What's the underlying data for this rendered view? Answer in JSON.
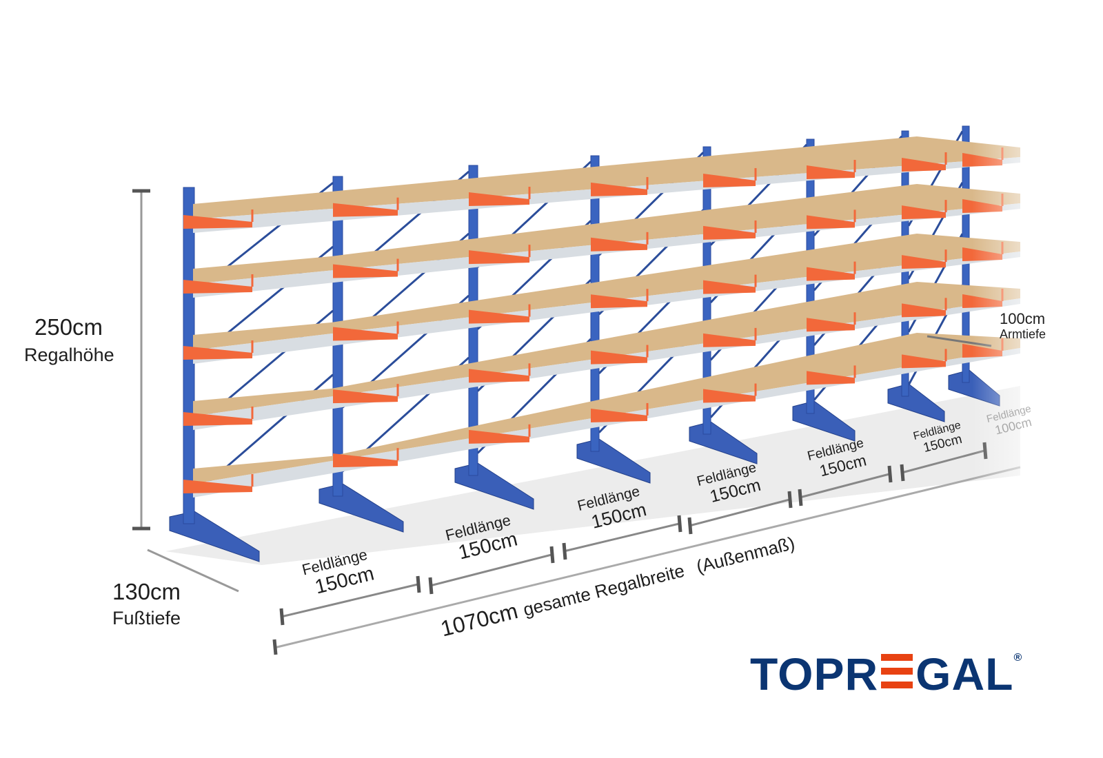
{
  "brand": {
    "name_part1": "TOPR",
    "name_part2": "GAL",
    "registered": "®",
    "colors": {
      "navy": "#0b3572",
      "orange": "#e84212"
    }
  },
  "product": {
    "shelf_levels": 5,
    "columns_visible": 8,
    "colors": {
      "column": "#3a64c0",
      "arm": "#f2683a",
      "shelf": "#d9b88a",
      "beam": "#d8dde2"
    }
  },
  "dimensions": {
    "height": {
      "value": "250cm",
      "label": "Regalhöhe"
    },
    "foot_depth": {
      "value": "130cm",
      "label": "Fußtiefe"
    },
    "arm_depth": {
      "value": "100cm",
      "label": "Armtiefe"
    },
    "total_width": {
      "value": "1070cm",
      "label": "gesamte Regalbreite",
      "note": "(Außenmaß)"
    },
    "fields": [
      {
        "label": "Feldlänge",
        "value": "150cm"
      },
      {
        "label": "Feldlänge",
        "value": "150cm"
      },
      {
        "label": "Feldlänge",
        "value": "150cm"
      },
      {
        "label": "Feldlänge",
        "value": "150cm"
      },
      {
        "label": "Feldlänge",
        "value": "150cm"
      },
      {
        "label": "Feldlänge",
        "value": "150cm"
      },
      {
        "label": "Feldlänge",
        "value": "100cm"
      }
    ]
  }
}
